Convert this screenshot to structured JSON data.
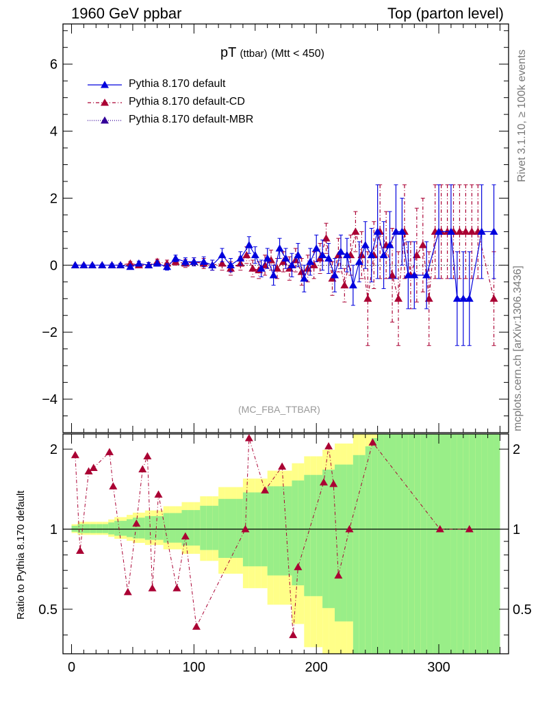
{
  "header": {
    "left": "1960 GeV ppbar",
    "right": "Top (parton level)"
  },
  "side": {
    "rivet": "Rivet 3.1.10, ≥ 100k events",
    "mcplots": "mcplots.cern.ch [arXiv:1306.3436]"
  },
  "chart_data": {
    "type": "scatter",
    "title_main": "pT",
    "title_sub": "(ttbar)",
    "title_cond": "(Mtt < 450)",
    "watermark": "(MC_FBA_TTBAR)",
    "ratio_ylabel": "Ratio to Pythia 8.170 default",
    "xlim": [
      -7,
      357
    ],
    "ylim": [
      -5,
      7.2
    ],
    "ratio_ylim": [
      0.34,
      2.28
    ],
    "main_yticks": [
      -4,
      -2,
      0,
      2,
      4,
      6
    ],
    "main_ytick_labels": [
      "−4",
      "−2",
      "0",
      "2",
      "4",
      "6"
    ],
    "ratio_yticks": [
      0.5,
      1,
      2
    ],
    "ratio_ytick_labels": [
      "0.5",
      "1",
      "2"
    ],
    "xticks": [
      0,
      100,
      200,
      300
    ],
    "xtick_labels": [
      "0",
      "100",
      "200",
      "300"
    ],
    "legend": [
      "Pythia 8.170 default",
      "Pythia 8.170 default-CD",
      "Pythia 8.170 default-MBR"
    ],
    "colors": {
      "default": "#0000dd",
      "cd": "#aa0033",
      "mbr": "#330099",
      "band_green": "#99ee88",
      "band_yellow": "#ffff88"
    },
    "series": [
      {
        "name": "Pythia 8.170 default",
        "x": [
          3,
          10,
          17,
          25,
          33,
          40,
          48,
          55,
          63,
          70,
          78,
          85,
          93,
          100,
          108,
          115,
          123,
          130,
          138,
          145,
          150,
          155,
          160,
          165,
          170,
          175,
          180,
          185,
          190,
          195,
          200,
          205,
          210,
          215,
          220,
          225,
          230,
          235,
          240,
          245,
          250,
          255,
          260,
          265,
          270,
          275,
          280,
          290,
          300,
          310,
          315,
          320,
          325,
          335,
          345
        ],
        "y": [
          0,
          0,
          0,
          0,
          0,
          0,
          -0.05,
          0.05,
          0,
          0.05,
          -0.05,
          0.2,
          0.1,
          0.1,
          0.1,
          0,
          0.3,
          0,
          0.2,
          0.6,
          0.3,
          -0.1,
          0.2,
          -0.3,
          0.5,
          0.2,
          0,
          0.3,
          -0.4,
          0.1,
          0.5,
          0.3,
          0.2,
          -0.3,
          0.4,
          0.3,
          -0.6,
          0.1,
          0.6,
          0.3,
          1,
          0.3,
          0.6,
          1,
          1,
          -0.3,
          -0.3,
          -0.3,
          1,
          1,
          -1,
          -1,
          -1,
          1,
          1
        ],
        "err": [
          0.02,
          0.03,
          0.03,
          0.03,
          0.04,
          0.05,
          0.06,
          0.07,
          0.08,
          0.08,
          0.1,
          0.1,
          0.12,
          0.12,
          0.15,
          0.15,
          0.2,
          0.2,
          0.2,
          0.25,
          0.25,
          0.25,
          0.3,
          0.3,
          0.3,
          0.3,
          0.35,
          0.35,
          0.4,
          0.4,
          0.4,
          0.45,
          0.45,
          0.5,
          0.5,
          0.5,
          0.6,
          0.6,
          0.7,
          0.8,
          1.4,
          1,
          1,
          1.4,
          1,
          1,
          1,
          1,
          1.4,
          1.4,
          1.4,
          1.4,
          1.4,
          1.4,
          1.4
        ]
      },
      {
        "name": "Pythia 8.170 default-CD",
        "x": [
          3,
          10,
          17,
          25,
          33,
          40,
          48,
          55,
          63,
          70,
          78,
          85,
          93,
          100,
          108,
          115,
          123,
          130,
          138,
          143,
          148,
          153,
          158,
          163,
          168,
          173,
          178,
          183,
          188,
          193,
          198,
          203,
          208,
          213,
          218,
          223,
          228,
          232,
          237,
          242,
          247,
          252,
          257,
          262,
          267,
          272,
          277,
          282,
          287,
          292,
          297,
          302,
          307,
          312,
          317,
          322,
          327,
          332,
          345
        ],
        "y": [
          0,
          0,
          0,
          0,
          0,
          0,
          0.05,
          0,
          0,
          0.1,
          0.05,
          0.1,
          0.05,
          0.1,
          0.05,
          0,
          0.05,
          -0.1,
          0.05,
          0.3,
          -0.1,
          -0.15,
          0,
          0.15,
          -0.1,
          0.1,
          -0.1,
          0.15,
          -0.2,
          -0.1,
          0,
          0.2,
          0.8,
          -0.4,
          0.3,
          -0.6,
          0.3,
          1,
          0.3,
          -1,
          0.3,
          1,
          0.6,
          -0.3,
          -1,
          1,
          -0.3,
          0.3,
          0.6,
          -1,
          1,
          1,
          1,
          1,
          1,
          1,
          1,
          1,
          -1
        ],
        "err": [
          0.02,
          0.03,
          0.03,
          0.03,
          0.04,
          0.05,
          0.06,
          0.07,
          0.08,
          0.08,
          0.1,
          0.1,
          0.12,
          0.12,
          0.15,
          0.15,
          0.2,
          0.2,
          0.2,
          0.25,
          0.25,
          0.25,
          0.3,
          0.3,
          0.3,
          0.3,
          0.35,
          0.35,
          0.4,
          0.4,
          0.4,
          0.45,
          0.45,
          0.5,
          0.5,
          0.5,
          0.6,
          0.6,
          0.7,
          1.4,
          1,
          1.4,
          1,
          1.4,
          1.4,
          1.4,
          1,
          1.4,
          1.4,
          1.4,
          1.4,
          1.4,
          1.4,
          1.4,
          1.4,
          1.4,
          1.4,
          1.4,
          1.4
        ]
      },
      {
        "name": "Pythia 8.170 default-MBR",
        "x": [],
        "y": [],
        "err": []
      }
    ],
    "ratio_series": {
      "name": "Pythia 8.170 default-CD",
      "x": [
        3,
        7,
        14,
        18,
        31,
        34,
        46,
        53,
        58,
        62,
        66,
        71,
        86,
        93,
        102,
        142,
        145,
        158,
        172,
        181,
        185,
        206,
        210,
        214,
        218,
        227,
        246,
        301,
        325
      ],
      "y": [
        1.9,
        0.83,
        1.65,
        1.7,
        1.95,
        1.45,
        0.58,
        1.05,
        1.68,
        1.88,
        0.6,
        1.35,
        0.6,
        0.94,
        0.43,
        1.0,
        2.2,
        1.4,
        1.72,
        0.4,
        0.72,
        1.5,
        2.05,
        1.48,
        0.67,
        1.0,
        2.12,
        1.0,
        1.0
      ]
    }
  }
}
